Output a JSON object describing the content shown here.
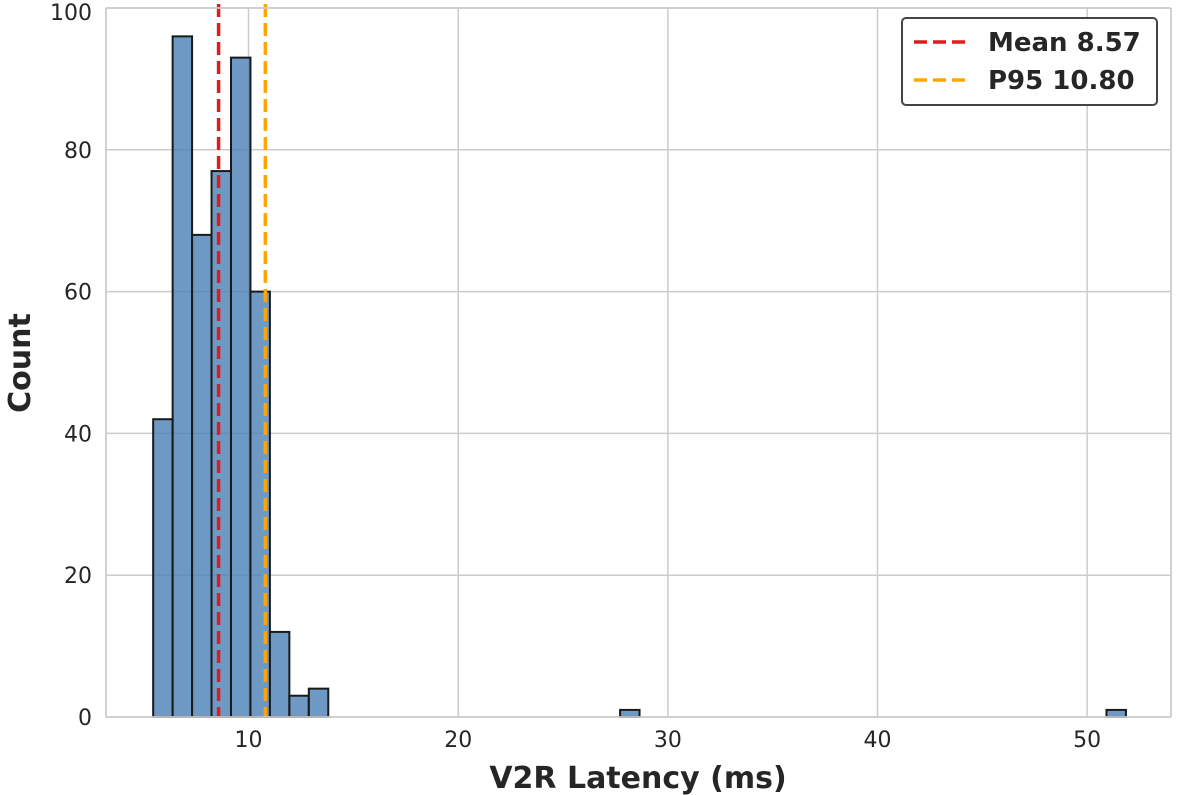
{
  "chart_data": {
    "type": "bar",
    "xlabel": "V2R Latency (ms)",
    "ylabel": "Count",
    "xlim": [
      3.2,
      54.0
    ],
    "ylim": [
      0,
      100
    ],
    "xticks": [
      10,
      20,
      30,
      40,
      50
    ],
    "yticks": [
      0,
      20,
      40,
      60,
      80,
      100
    ],
    "grid": true,
    "bin_width": 0.928,
    "bars": [
      {
        "x_start": 5.45,
        "count": 42
      },
      {
        "x_start": 6.378,
        "count": 96
      },
      {
        "x_start": 7.306,
        "count": 68
      },
      {
        "x_start": 8.234,
        "count": 77
      },
      {
        "x_start": 9.162,
        "count": 93
      },
      {
        "x_start": 10.09,
        "count": 60
      },
      {
        "x_start": 11.018,
        "count": 12
      },
      {
        "x_start": 11.946,
        "count": 3
      },
      {
        "x_start": 12.874,
        "count": 4
      },
      {
        "x_start": 27.722,
        "count": 1
      },
      {
        "x_start": 50.922,
        "count": 1
      }
    ],
    "reference_lines": [
      {
        "name": "Mean 8.57",
        "x": 8.57,
        "color": "#e31a1c",
        "style": "dashed"
      },
      {
        "name": "P95 10.80",
        "x": 10.8,
        "color": "#ffa500",
        "style": "dashed"
      }
    ],
    "bar_color": "#4a80b5",
    "legend_position": "top-right"
  }
}
